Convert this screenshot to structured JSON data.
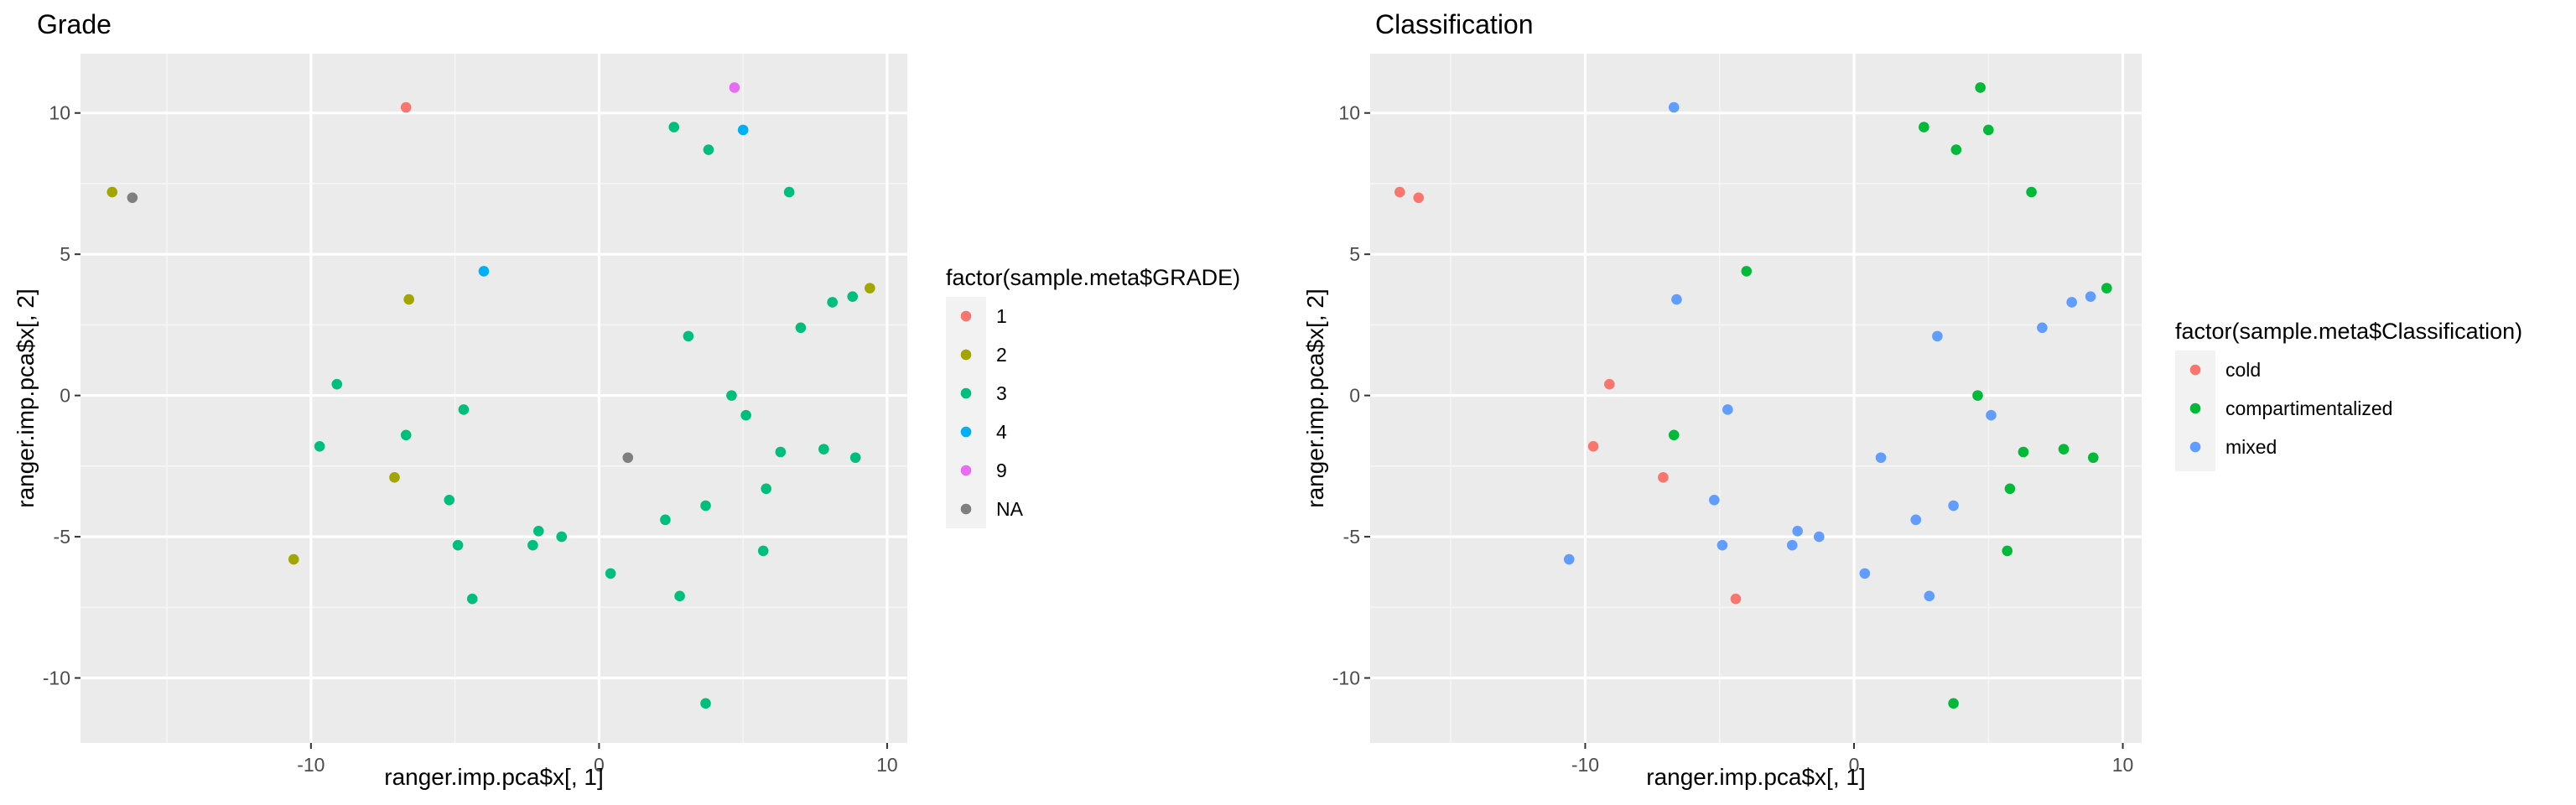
{
  "chart_data": [
    {
      "type": "scatter",
      "title": "Grade",
      "xlabel": "ranger.imp.pca$x[, 1]",
      "ylabel": "ranger.imp.pca$x[, 2]",
      "xlim": [
        -18.0,
        10.7
      ],
      "ylim": [
        -12.3,
        12.1
      ],
      "xticks": [
        -10,
        0,
        10
      ],
      "yticks": [
        -10,
        -5,
        0,
        5,
        10
      ],
      "grid": true,
      "legend": {
        "title": "factor(sample.meta$GRADE)",
        "placement": "right"
      },
      "series": [
        {
          "name": "1",
          "color": "#F8766D",
          "points": [
            {
              "x": -6.7,
              "y": 10.2
            }
          ]
        },
        {
          "name": "2",
          "color": "#A3A500",
          "points": [
            {
              "x": -16.9,
              "y": 7.2
            },
            {
              "x": -6.6,
              "y": 3.4
            },
            {
              "x": -7.1,
              "y": -2.9
            },
            {
              "x": -10.6,
              "y": -5.8
            },
            {
              "x": 9.4,
              "y": 3.8
            }
          ]
        },
        {
          "name": "3",
          "color": "#00BF7D",
          "points": [
            {
              "x": 2.6,
              "y": 9.5
            },
            {
              "x": 3.8,
              "y": 8.7
            },
            {
              "x": 6.6,
              "y": 7.2
            },
            {
              "x": 8.8,
              "y": 3.5
            },
            {
              "x": 8.1,
              "y": 3.3
            },
            {
              "x": 7.0,
              "y": 2.4
            },
            {
              "x": 3.1,
              "y": 2.1
            },
            {
              "x": -9.1,
              "y": 0.4
            },
            {
              "x": 4.6,
              "y": 0.0
            },
            {
              "x": 5.1,
              "y": -0.7
            },
            {
              "x": -4.7,
              "y": -0.5
            },
            {
              "x": -6.7,
              "y": -1.4
            },
            {
              "x": -9.7,
              "y": -1.8
            },
            {
              "x": 6.3,
              "y": -2.0
            },
            {
              "x": 7.8,
              "y": -1.9
            },
            {
              "x": 8.9,
              "y": -2.2
            },
            {
              "x": 5.8,
              "y": -3.3
            },
            {
              "x": 3.7,
              "y": -3.9
            },
            {
              "x": -5.2,
              "y": -3.7
            },
            {
              "x": -4.9,
              "y": -5.3
            },
            {
              "x": -2.1,
              "y": -4.8
            },
            {
              "x": -2.3,
              "y": -5.3
            },
            {
              "x": -1.3,
              "y": -5.0
            },
            {
              "x": 2.3,
              "y": -4.4
            },
            {
              "x": 5.7,
              "y": -5.5
            },
            {
              "x": 0.4,
              "y": -6.3
            },
            {
              "x": 2.8,
              "y": -7.1
            },
            {
              "x": -4.4,
              "y": -7.2
            },
            {
              "x": 3.7,
              "y": -10.9
            }
          ]
        },
        {
          "name": "4",
          "color": "#00B0F6",
          "points": [
            {
              "x": 5.0,
              "y": 9.4
            },
            {
              "x": -4.0,
              "y": 4.4
            }
          ]
        },
        {
          "name": "9",
          "color": "#E76BF3",
          "points": [
            {
              "x": 4.7,
              "y": 10.9
            }
          ]
        },
        {
          "name": "NA",
          "color": "#7F7F7F",
          "points": [
            {
              "x": -16.2,
              "y": 7.0
            },
            {
              "x": 1.0,
              "y": -2.2
            }
          ]
        }
      ]
    },
    {
      "type": "scatter",
      "title": "Classification",
      "xlabel": "ranger.imp.pca$x[, 1]",
      "ylabel": "ranger.imp.pca$x[, 2]",
      "xlim": [
        -18.0,
        10.7
      ],
      "ylim": [
        -12.3,
        12.1
      ],
      "xticks": [
        -10,
        0,
        10
      ],
      "yticks": [
        -10,
        -5,
        0,
        5,
        10
      ],
      "grid": true,
      "legend": {
        "title": "factor(sample.meta$Classification)",
        "placement": "right"
      },
      "series": [
        {
          "name": "cold",
          "color": "#F8766D",
          "points": [
            {
              "x": -16.9,
              "y": 7.2
            },
            {
              "x": -16.2,
              "y": 7.0
            },
            {
              "x": -9.1,
              "y": 0.4
            },
            {
              "x": -9.7,
              "y": -1.8
            },
            {
              "x": -7.1,
              "y": -2.9
            },
            {
              "x": -4.4,
              "y": -7.2
            }
          ]
        },
        {
          "name": "compartimentalized",
          "color": "#00BA38",
          "points": [
            {
              "x": 4.7,
              "y": 10.9
            },
            {
              "x": 2.6,
              "y": 9.5
            },
            {
              "x": 5.0,
              "y": 9.4
            },
            {
              "x": 3.8,
              "y": 8.7
            },
            {
              "x": 6.6,
              "y": 7.2
            },
            {
              "x": -4.0,
              "y": 4.4
            },
            {
              "x": 9.4,
              "y": 3.8
            },
            {
              "x": 4.6,
              "y": 0.0
            },
            {
              "x": -6.7,
              "y": -1.4
            },
            {
              "x": 6.3,
              "y": -2.0
            },
            {
              "x": 7.8,
              "y": -1.9
            },
            {
              "x": 8.9,
              "y": -2.2
            },
            {
              "x": 5.8,
              "y": -3.3
            },
            {
              "x": 5.7,
              "y": -5.5
            },
            {
              "x": 3.7,
              "y": -10.9
            }
          ]
        },
        {
          "name": "mixed",
          "color": "#619CFF",
          "points": [
            {
              "x": -6.7,
              "y": 10.2
            },
            {
              "x": -6.6,
              "y": 3.4
            },
            {
              "x": 8.8,
              "y": 3.5
            },
            {
              "x": 8.1,
              "y": 3.3
            },
            {
              "x": 7.0,
              "y": 2.4
            },
            {
              "x": 3.1,
              "y": 2.1
            },
            {
              "x": -4.7,
              "y": -0.5
            },
            {
              "x": 5.1,
              "y": -0.7
            },
            {
              "x": 1.0,
              "y": -2.2
            },
            {
              "x": -5.2,
              "y": -3.7
            },
            {
              "x": 3.7,
              "y": -3.9
            },
            {
              "x": -4.9,
              "y": -5.3
            },
            {
              "x": -2.1,
              "y": -4.8
            },
            {
              "x": -2.3,
              "y": -5.3
            },
            {
              "x": -1.3,
              "y": -5.0
            },
            {
              "x": 2.3,
              "y": -4.4
            },
            {
              "x": -10.6,
              "y": -5.8
            },
            {
              "x": 0.4,
              "y": -6.3
            },
            {
              "x": 2.8,
              "y": -7.1
            }
          ]
        }
      ]
    }
  ]
}
